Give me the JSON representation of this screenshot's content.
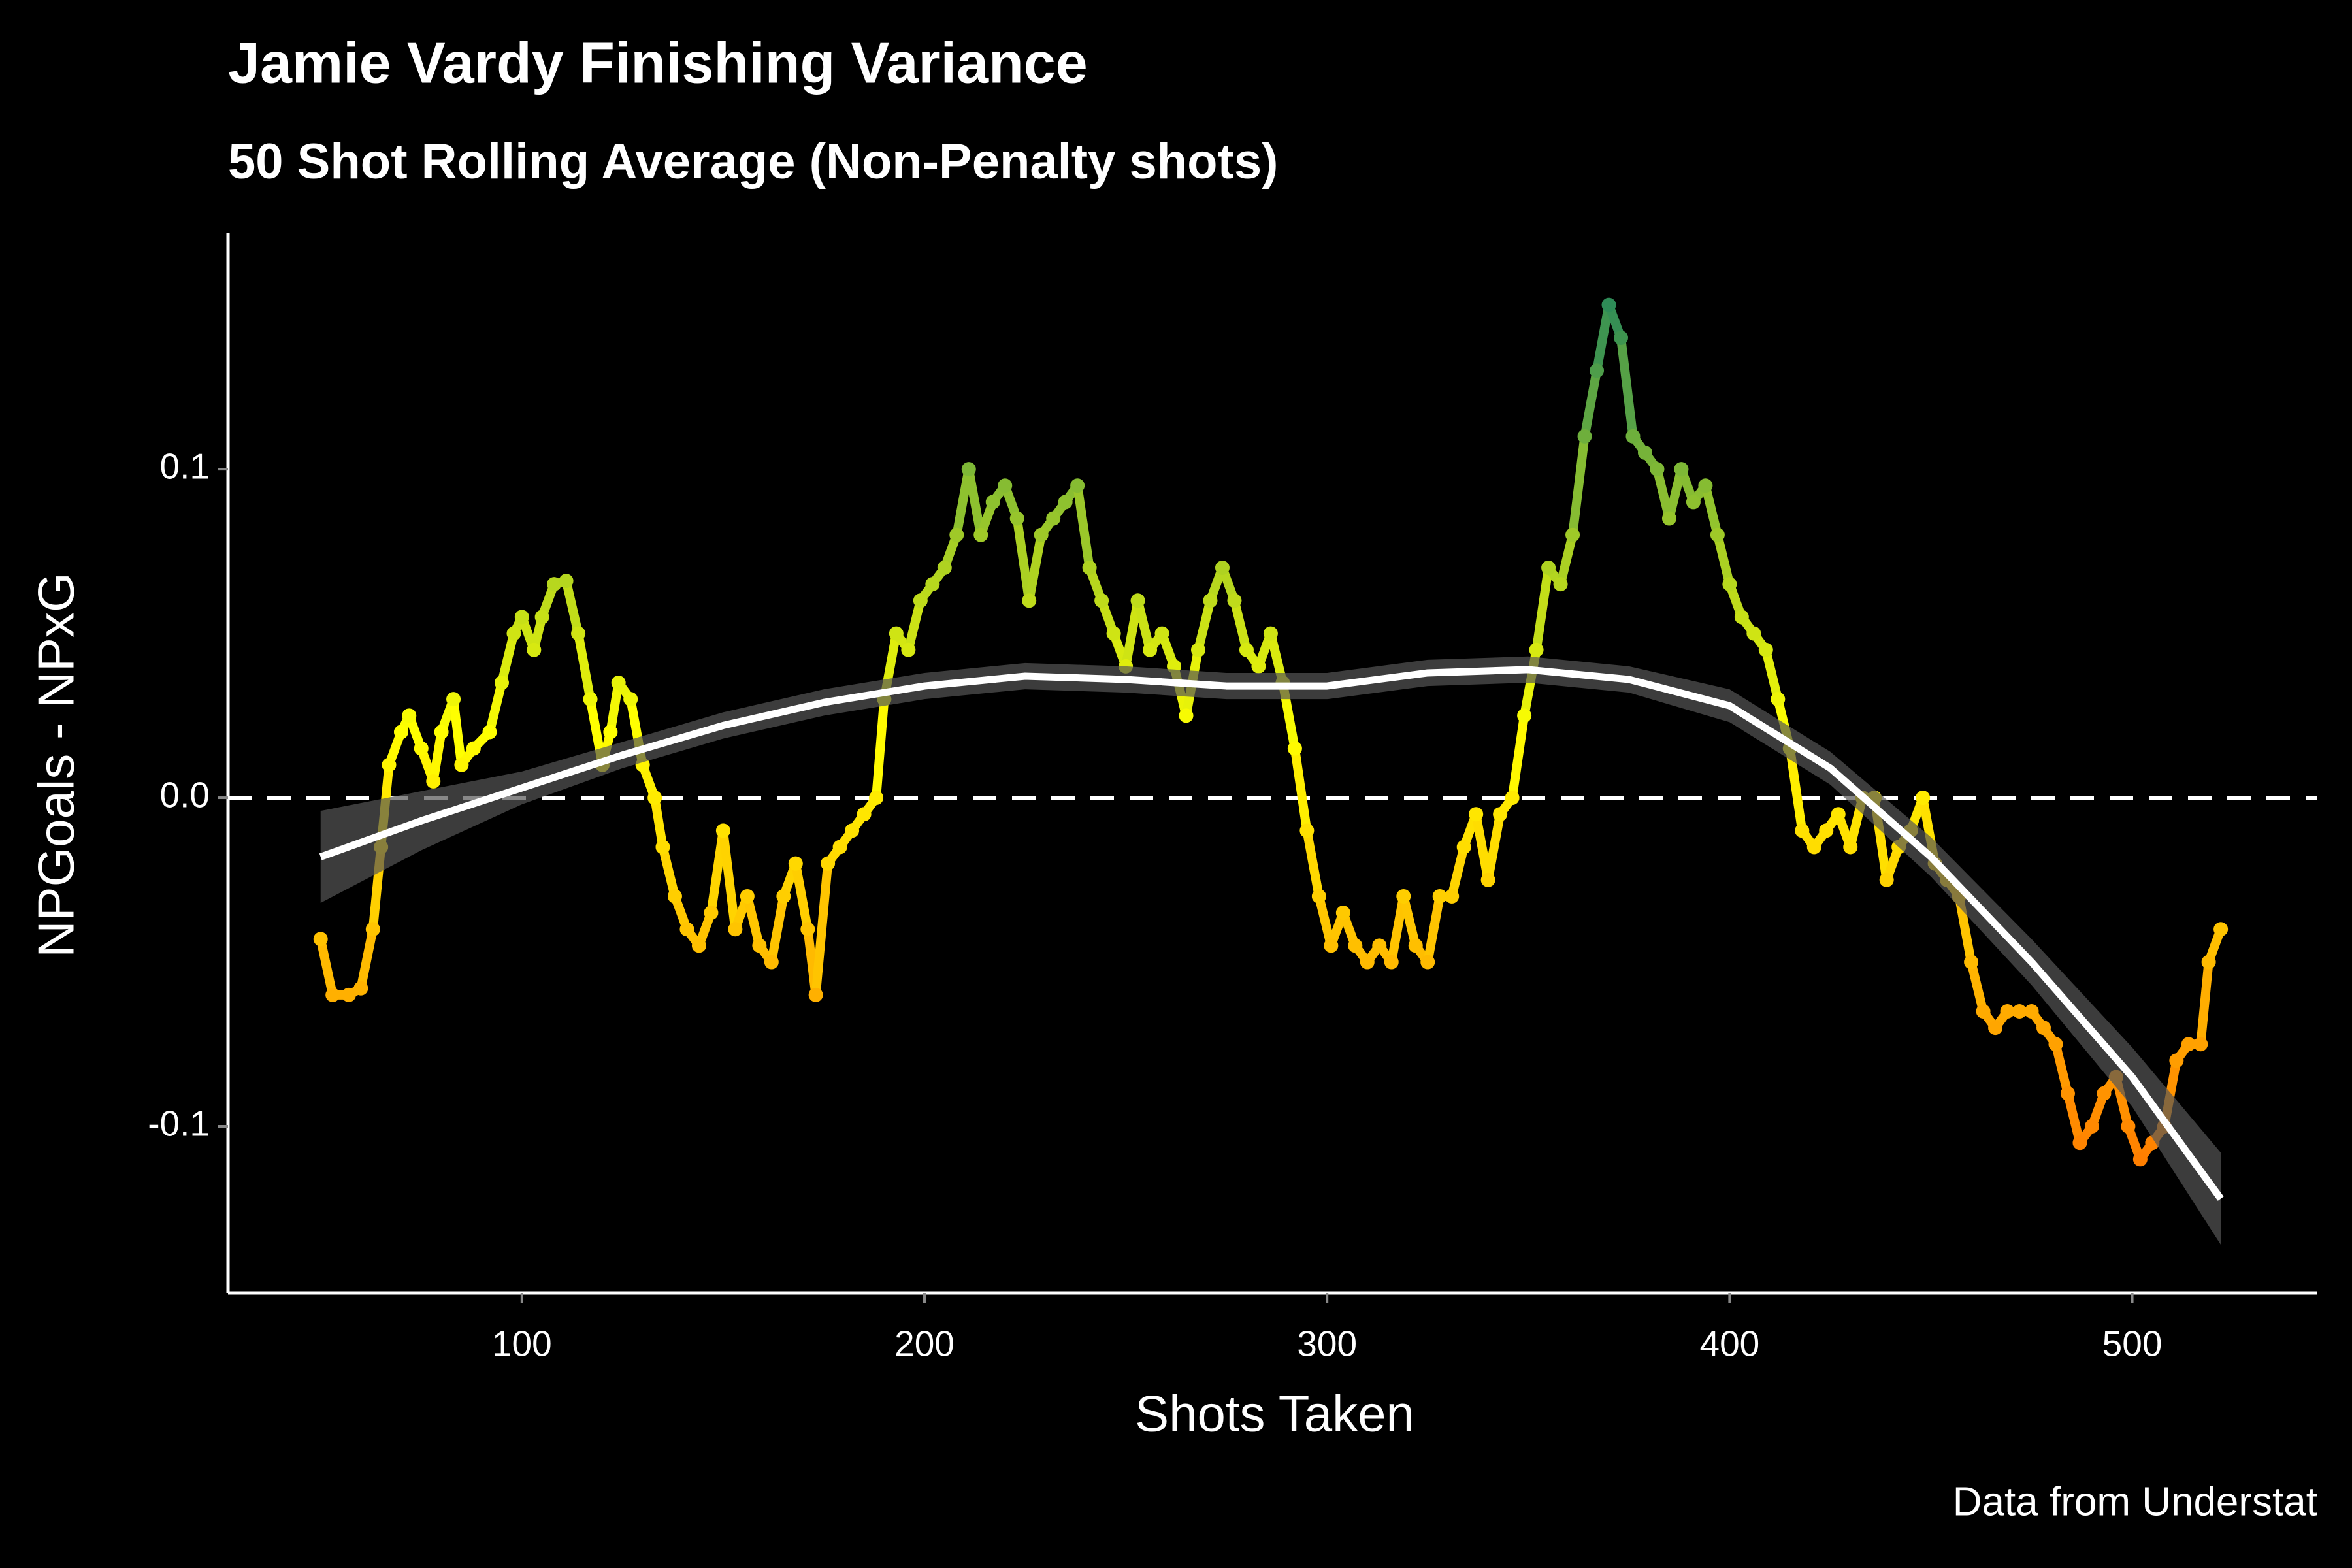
{
  "chart_data": {
    "type": "line",
    "title": "Jamie Vardy Finishing Variance",
    "subtitle": "50 Shot Rolling Average (Non-Penalty shots)",
    "xlabel": "Shots Taken",
    "ylabel": "NPGoals - NPxG",
    "caption": "Data from Understat",
    "x": [
      50,
      53,
      57,
      60,
      63,
      65,
      67,
      70,
      72,
      75,
      78,
      80,
      83,
      85,
      88,
      92,
      95,
      98,
      100,
      103,
      105,
      108,
      111,
      114,
      117,
      120,
      122,
      124,
      127,
      130,
      133,
      135,
      138,
      141,
      144,
      147,
      150,
      153,
      156,
      159,
      162,
      165,
      168,
      171,
      173,
      176,
      179,
      182,
      185,
      188,
      190,
      193,
      196,
      199,
      202,
      205,
      208,
      211,
      214,
      217,
      220,
      223,
      226,
      229,
      232,
      235,
      238,
      241,
      244,
      247,
      250,
      253,
      256,
      259,
      262,
      265,
      268,
      271,
      274,
      277,
      280,
      283,
      286,
      289,
      292,
      295,
      298,
      301,
      304,
      307,
      310,
      313,
      316,
      319,
      322,
      325,
      328,
      331,
      334,
      337,
      340,
      343,
      346,
      349,
      352,
      355,
      358,
      361,
      364,
      367,
      370,
      373,
      376,
      379,
      382,
      385,
      388,
      391,
      394,
      397,
      400,
      403,
      406,
      409,
      412,
      415,
      418,
      421,
      424,
      427,
      430,
      433,
      436,
      439,
      442,
      445,
      448,
      451,
      454,
      457,
      460,
      463,
      466,
      469,
      472,
      475,
      478,
      481,
      484,
      487,
      490,
      493,
      496,
      499,
      502,
      505,
      508,
      511,
      514,
      517,
      519,
      522
    ],
    "values": [
      -0.043,
      -0.06,
      -0.06,
      -0.058,
      -0.04,
      -0.015,
      0.01,
      0.02,
      0.025,
      0.015,
      0.005,
      0.02,
      0.03,
      0.01,
      0.015,
      0.02,
      0.035,
      0.05,
      0.055,
      0.045,
      0.055,
      0.065,
      0.066,
      0.05,
      0.03,
      0.01,
      0.02,
      0.035,
      0.03,
      0.01,
      0.0,
      -0.015,
      -0.03,
      -0.04,
      -0.045,
      -0.035,
      -0.01,
      -0.04,
      -0.03,
      -0.045,
      -0.05,
      -0.03,
      -0.02,
      -0.04,
      -0.06,
      -0.02,
      -0.015,
      -0.01,
      -0.005,
      0.0,
      0.03,
      0.05,
      0.045,
      0.06,
      0.065,
      0.07,
      0.08,
      0.1,
      0.08,
      0.09,
      0.095,
      0.085,
      0.06,
      0.08,
      0.085,
      0.09,
      0.095,
      0.07,
      0.06,
      0.05,
      0.04,
      0.06,
      0.045,
      0.05,
      0.04,
      0.025,
      0.045,
      0.06,
      0.07,
      0.06,
      0.045,
      0.04,
      0.05,
      0.035,
      0.015,
      -0.01,
      -0.03,
      -0.045,
      -0.035,
      -0.045,
      -0.05,
      -0.045,
      -0.05,
      -0.03,
      -0.045,
      -0.05,
      -0.03,
      -0.03,
      -0.015,
      -0.005,
      -0.025,
      -0.005,
      0.0,
      0.025,
      0.045,
      0.07,
      0.065,
      0.08,
      0.11,
      0.13,
      0.15,
      0.14,
      0.11,
      0.105,
      0.1,
      0.085,
      0.1,
      0.09,
      0.095,
      0.08,
      0.065,
      0.055,
      0.05,
      0.045,
      0.03,
      0.015,
      -0.01,
      -0.015,
      -0.01,
      -0.005,
      -0.015,
      0.0,
      0.0,
      -0.025,
      -0.015,
      -0.01,
      0.0,
      -0.02,
      -0.025,
      -0.03,
      -0.05,
      -0.065,
      -0.07,
      -0.065,
      -0.065,
      -0.065,
      -0.07,
      -0.075,
      -0.09,
      -0.105,
      -0.1,
      -0.09,
      -0.085,
      -0.1,
      -0.11,
      -0.105,
      -0.1,
      -0.08,
      -0.075,
      -0.075,
      -0.05,
      -0.04
    ],
    "color_low": "#ff7f00",
    "color_mid": "#ffff00",
    "color_high": "#2e8b57",
    "trend": {
      "color": "#ffffff",
      "band_color": "#555555",
      "x": [
        50,
        75,
        100,
        125,
        150,
        175,
        200,
        225,
        250,
        275,
        300,
        325,
        350,
        375,
        400,
        425,
        450,
        475,
        500,
        522
      ],
      "values": [
        -0.018,
        -0.007,
        0.003,
        0.013,
        0.022,
        0.029,
        0.034,
        0.037,
        0.036,
        0.034,
        0.034,
        0.038,
        0.039,
        0.036,
        0.028,
        0.009,
        -0.018,
        -0.05,
        -0.085,
        -0.122
      ],
      "lower": [
        -0.032,
        -0.016,
        -0.002,
        0.009,
        0.018,
        0.025,
        0.03,
        0.033,
        0.032,
        0.03,
        0.03,
        0.034,
        0.035,
        0.032,
        0.023,
        0.004,
        -0.024,
        -0.057,
        -0.094,
        -0.136
      ],
      "upper": [
        -0.004,
        0.002,
        0.008,
        0.017,
        0.026,
        0.033,
        0.038,
        0.041,
        0.04,
        0.038,
        0.038,
        0.042,
        0.043,
        0.04,
        0.033,
        0.014,
        -0.012,
        -0.043,
        -0.076,
        -0.108
      ]
    },
    "hline": 0,
    "xlim": [
      27,
      546
    ],
    "ylim": [
      -0.1507,
      0.172
    ],
    "xticks": [
      100,
      200,
      300,
      400,
      500
    ],
    "yticks": [
      -0.1,
      {
        "value": 0,
        "label": "0.0"
      },
      0.1
    ]
  }
}
